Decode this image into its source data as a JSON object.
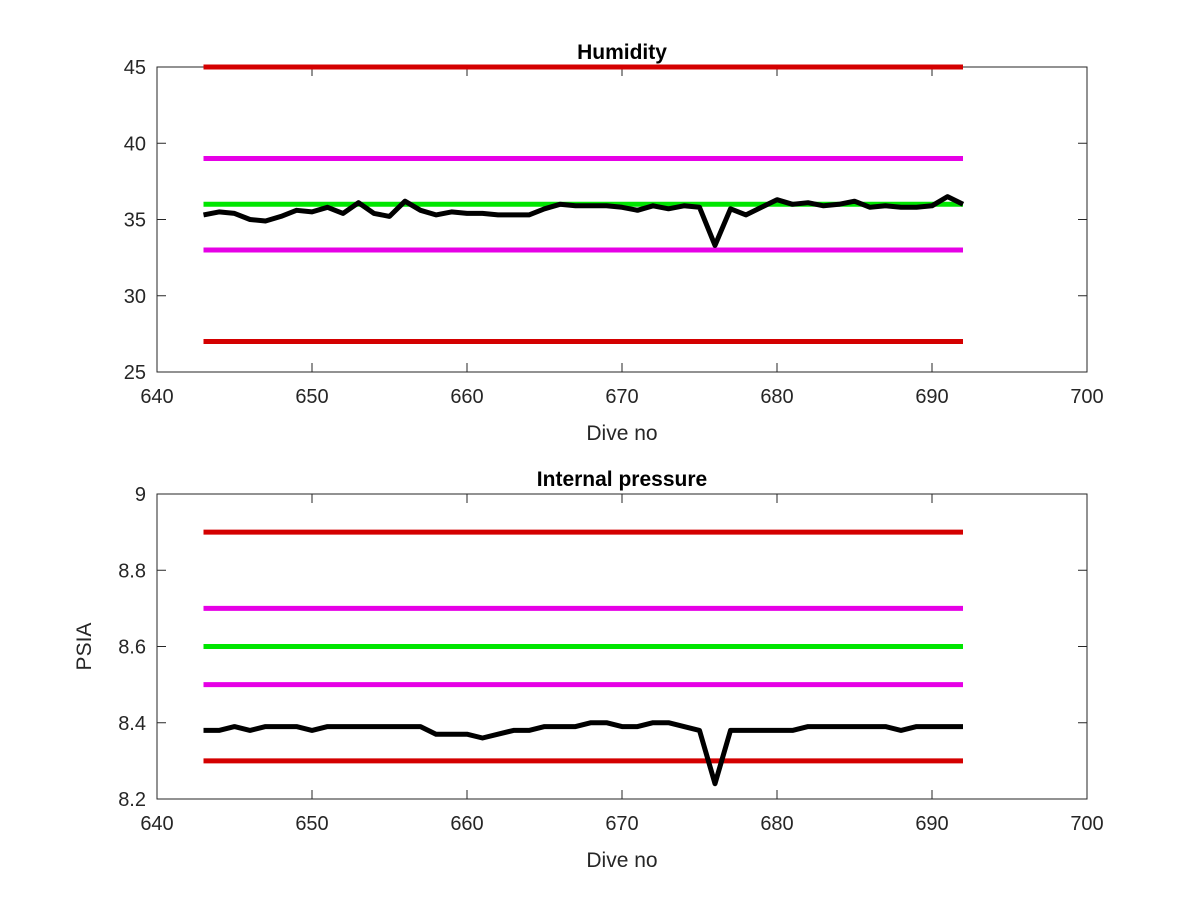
{
  "chart_data": [
    {
      "type": "line",
      "title": "Humidity",
      "xlabel": "Dive no",
      "ylabel": "",
      "xlim": [
        640,
        700
      ],
      "ylim": [
        25,
        45
      ],
      "xticks": [
        640,
        650,
        660,
        670,
        680,
        690,
        700
      ],
      "yticks": [
        25,
        30,
        35,
        40,
        45
      ],
      "grid": false,
      "reference_lines": [
        {
          "y": 45,
          "x_range": [
            643,
            692
          ],
          "color": "#d40000"
        },
        {
          "y": 39,
          "x_range": [
            643,
            692
          ],
          "color": "#e600e6"
        },
        {
          "y": 36,
          "x_range": [
            643,
            692
          ],
          "color": "#00e600"
        },
        {
          "y": 33,
          "x_range": [
            643,
            692
          ],
          "color": "#e600e6"
        },
        {
          "y": 27,
          "x_range": [
            643,
            692
          ],
          "color": "#d40000"
        }
      ],
      "series": [
        {
          "color": "#000000",
          "x": [
            643,
            644,
            645,
            646,
            647,
            648,
            649,
            650,
            651,
            652,
            653,
            654,
            655,
            656,
            657,
            658,
            659,
            660,
            661,
            662,
            663,
            664,
            665,
            666,
            667,
            668,
            669,
            670,
            671,
            672,
            673,
            674,
            675,
            676,
            677,
            678,
            679,
            680,
            681,
            682,
            683,
            684,
            685,
            686,
            687,
            688,
            689,
            690,
            691,
            692
          ],
          "values": [
            35.3,
            35.5,
            35.4,
            35.0,
            34.9,
            35.2,
            35.6,
            35.5,
            35.8,
            35.4,
            36.1,
            35.4,
            35.2,
            36.2,
            35.6,
            35.3,
            35.5,
            35.4,
            35.4,
            35.3,
            35.3,
            35.3,
            35.7,
            36.0,
            35.9,
            35.9,
            35.9,
            35.8,
            35.6,
            35.9,
            35.7,
            35.9,
            35.8,
            33.3,
            35.7,
            35.3,
            35.8,
            36.3,
            36.0,
            36.1,
            35.9,
            36.0,
            36.2,
            35.8,
            35.9,
            35.8,
            35.8,
            35.9,
            36.5,
            36.0
          ]
        }
      ]
    },
    {
      "type": "line",
      "title": "Internal pressure",
      "xlabel": "Dive no",
      "ylabel": "PSIA",
      "xlim": [
        640,
        700
      ],
      "ylim": [
        8.2,
        9.0
      ],
      "xticks": [
        640,
        650,
        660,
        670,
        680,
        690,
        700
      ],
      "yticks": [
        8.2,
        8.4,
        8.6,
        8.8,
        9
      ],
      "ytick_labels": [
        "8.2",
        "8.4",
        "8.6",
        "8.8",
        "9"
      ],
      "grid": false,
      "reference_lines": [
        {
          "y": 8.9,
          "x_range": [
            643,
            692
          ],
          "color": "#d40000"
        },
        {
          "y": 8.7,
          "x_range": [
            643,
            692
          ],
          "color": "#e600e6"
        },
        {
          "y": 8.6,
          "x_range": [
            643,
            692
          ],
          "color": "#00e600"
        },
        {
          "y": 8.5,
          "x_range": [
            643,
            692
          ],
          "color": "#e600e6"
        },
        {
          "y": 8.3,
          "x_range": [
            643,
            692
          ],
          "color": "#d40000"
        }
      ],
      "series": [
        {
          "color": "#000000",
          "x": [
            643,
            644,
            645,
            646,
            647,
            648,
            649,
            650,
            651,
            652,
            653,
            654,
            655,
            656,
            657,
            658,
            659,
            660,
            661,
            662,
            663,
            664,
            665,
            666,
            667,
            668,
            669,
            670,
            671,
            672,
            673,
            674,
            675,
            676,
            677,
            678,
            679,
            680,
            681,
            682,
            683,
            684,
            685,
            686,
            687,
            688,
            689,
            690,
            691,
            692
          ],
          "values": [
            8.38,
            8.38,
            8.39,
            8.38,
            8.39,
            8.39,
            8.39,
            8.38,
            8.39,
            8.39,
            8.39,
            8.39,
            8.39,
            8.39,
            8.39,
            8.37,
            8.37,
            8.37,
            8.36,
            8.37,
            8.38,
            8.38,
            8.39,
            8.39,
            8.39,
            8.4,
            8.4,
            8.39,
            8.39,
            8.4,
            8.4,
            8.39,
            8.38,
            8.24,
            8.38,
            8.38,
            8.38,
            8.38,
            8.38,
            8.39,
            8.39,
            8.39,
            8.39,
            8.39,
            8.39,
            8.38,
            8.39,
            8.39,
            8.39,
            8.39
          ]
        }
      ]
    }
  ]
}
